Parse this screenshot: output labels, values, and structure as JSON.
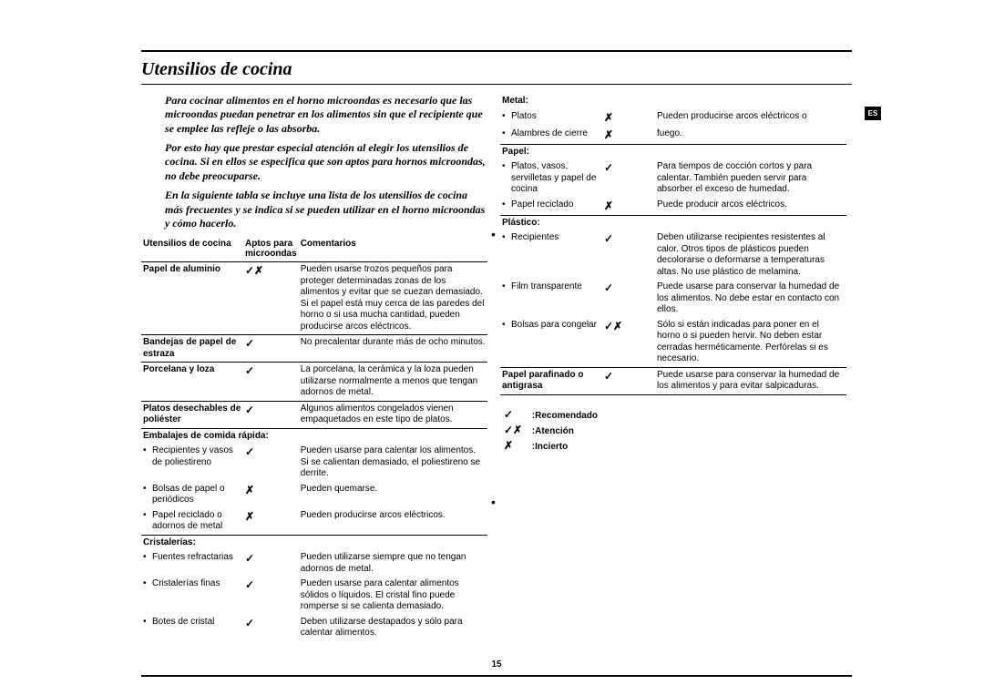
{
  "title": "Utensilios de cocina",
  "langTab": "ES",
  "pageNum": "15",
  "intro": [
    "Para cocinar alimentos en el horno microondas es necesario que las microondas puedan penetrar en los alimentos sin que el recipiente que se emplee las refleje o las absorba.",
    "Por esto hay que prestar especial atención al elegir los utensilios de cocina. Si en ellos se especifica que son aptos para hornos microondas, no debe preocuparse.",
    "En la siguiente tabla se incluye una lista de los utensilios de cocina más frecuentes y se indica si se pueden utilizar en el horno microondas y cómo hacerlo."
  ],
  "headers": {
    "util": "Utensilios de cocina",
    "apt": "Aptos para microondas",
    "com": "Comentarios"
  },
  "left": [
    {
      "t": "row",
      "b": true,
      "c1": "Papel de aluminio",
      "sym": "✓✗",
      "c3": "Pueden usarse trozos pequeños para proteger determinadas zonas de los alimentos y evitar que se cuezan demasiado. Si el papel está muy cerca de las paredes del horno o si usa mucha cantidad, pueden producirse arcos eléctricos.",
      "line": true
    },
    {
      "t": "row",
      "b": true,
      "c1": "Bandejas de papel de estraza",
      "sym": "✓",
      "c3": "No precalentar durante más de ocho minutos.",
      "line": true
    },
    {
      "t": "row",
      "b": true,
      "c1": "Porcelana y loza",
      "sym": "✓",
      "c3": "La porcelana, la cerámica y la loza pueden utilizarse normalmente a menos que tengan adornos de metal.",
      "line": true
    },
    {
      "t": "row",
      "b": true,
      "c1": "Platos desechables de poliéster",
      "sym": "✓",
      "c3": "Algunos alimentos congelados vienen empaquetados en este tipo de platos.",
      "line": true
    },
    {
      "t": "head",
      "b": true,
      "c1": "Embalajes de comida rápida:"
    },
    {
      "t": "bul",
      "c1": "Recipientes y vasos de poliestireno",
      "sym": "✓",
      "c3": "Pueden usarse para calentar los alimentos. Si se calientan demasiado, el poliestireno se derrite."
    },
    {
      "t": "bul",
      "c1": "Bolsas de papel o periódicos",
      "sym": "✗",
      "c3": "Pueden quemarse."
    },
    {
      "t": "bul",
      "c1": "Papel reciclado o adornos de metal",
      "sym": "✗",
      "c3": "Pueden producirse arcos eléctricos.",
      "line": true
    },
    {
      "t": "head",
      "b": true,
      "c1": "Cristalerías:"
    },
    {
      "t": "bul",
      "c1": "Fuentes refractarias",
      "sym": "✓",
      "c3": "Pueden utilizarse siempre que no tengan adornos de metal."
    },
    {
      "t": "bul",
      "c1": "Cristalerías finas",
      "sym": "✓",
      "c3": "Pueden usarse para calentar alimentos sólidos o líquidos. El cristal fino puede romperse si se calienta demasiado."
    },
    {
      "t": "bul",
      "c1": "Botes de cristal",
      "sym": "✓",
      "c3": "Deben utilizarse destapados y sólo para calentar alimentos."
    }
  ],
  "right": [
    {
      "t": "head",
      "b": true,
      "c1": "Metal:"
    },
    {
      "t": "bul",
      "c1": "Platos",
      "sym": "✗",
      "c3": "Pueden producirse arcos eléctricos o"
    },
    {
      "t": "bul",
      "c1": "Alambres de cierre",
      "sym": "✗",
      "c3": "fuego.",
      "line": true
    },
    {
      "t": "head",
      "b": true,
      "c1": "Papel:"
    },
    {
      "t": "bul",
      "c1": "Platos, vasos, servilletas y papel de cocina",
      "sym": "✓",
      "c3": "Para tiempos de cocción cortos y para calentar. También pueden servir para absorber el exceso de humedad."
    },
    {
      "t": "bul",
      "c1": "Papel reciclado",
      "sym": "✗",
      "c3": "Puede producir arcos eléctricos.",
      "line": true
    },
    {
      "t": "head",
      "b": true,
      "c1": "Plástico:"
    },
    {
      "t": "bul",
      "c1": "Recipientes",
      "sym": "✓",
      "c3": "Deben utilizarse recipientes resistentes al calor. Otros tipos de plásticos pueden decolorarse o deformarse a temperaturas altas. No use plástico de melamina."
    },
    {
      "t": "bul",
      "c1": "Film transparente",
      "sym": "✓",
      "c3": "Puede usarse para conservar la humedad de los alimentos. No debe estar en contacto con ellos."
    },
    {
      "t": "bul",
      "c1": "Bolsas para congelar",
      "sym": "✓✗",
      "c3": "Sólo si están indicadas para poner en el horno o si pueden hervir. No deben estar cerradas herméticamente. Perfórelas si es necesario.",
      "line": true
    },
    {
      "t": "row",
      "b": true,
      "c1": "Papel parafinado o antigrasa",
      "sym": "✓",
      "c3": "Puede usarse para conservar la humedad de los alimentos y para evitar salpicaduras.",
      "line": true
    }
  ],
  "legend": [
    {
      "sym": "✓",
      "label": ":Recomendado"
    },
    {
      "sym": "✓✗",
      "label": ":Atención"
    },
    {
      "sym": "✗",
      "label": ":Incierto"
    }
  ]
}
